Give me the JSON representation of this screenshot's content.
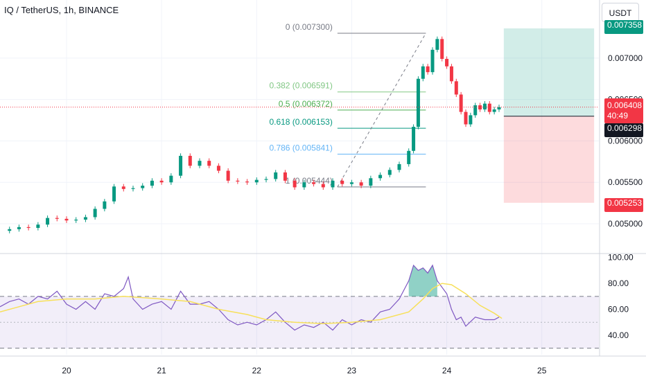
{
  "header": {
    "symbol": "IQ / TetherUS, 1h, BINANCE"
  },
  "toolbar": {
    "currency": "USDT"
  },
  "chart_data": {
    "type": "candlestick",
    "price_axis": {
      "range": [
        0.0049,
        0.00745
      ],
      "ticks": [
        "0.005000",
        "0.005500",
        "0.006000",
        "0.006500",
        "0.007000"
      ]
    },
    "time_axis": {
      "range": [
        19.3,
        25.6
      ],
      "ticks": [
        "20",
        "21",
        "22",
        "23",
        "24",
        "25"
      ]
    },
    "close_series": [
      [
        19.3,
        0.004915
      ],
      [
        19.4,
        0.004935
      ],
      [
        19.5,
        0.00496
      ],
      [
        19.6,
        0.00495
      ],
      [
        19.7,
        0.00499
      ],
      [
        19.8,
        0.00507
      ],
      [
        19.9,
        0.00506
      ],
      [
        20.0,
        0.00504
      ],
      [
        20.1,
        0.00505
      ],
      [
        20.2,
        0.00508
      ],
      [
        20.3,
        0.00518
      ],
      [
        20.4,
        0.00527
      ],
      [
        20.5,
        0.00545
      ],
      [
        20.6,
        0.00542
      ],
      [
        20.7,
        0.00543
      ],
      [
        20.8,
        0.00546
      ],
      [
        20.9,
        0.00552
      ],
      [
        21.0,
        0.0055
      ],
      [
        21.1,
        0.00558
      ],
      [
        21.2,
        0.00582
      ],
      [
        21.3,
        0.0057
      ],
      [
        21.4,
        0.00576
      ],
      [
        21.5,
        0.0057
      ],
      [
        21.6,
        0.00564
      ],
      [
        21.7,
        0.00552
      ],
      [
        21.8,
        0.00551
      ],
      [
        21.9,
        0.0055
      ],
      [
        22.0,
        0.00553
      ],
      [
        22.1,
        0.00554
      ],
      [
        22.2,
        0.00562
      ],
      [
        22.3,
        0.00552
      ],
      [
        22.4,
        0.00544
      ],
      [
        22.5,
        0.0055
      ],
      [
        22.6,
        0.00548
      ],
      [
        22.7,
        0.00544
      ],
      [
        22.8,
        0.00552
      ],
      [
        22.9,
        0.00548
      ],
      [
        23.0,
        0.0055
      ],
      [
        23.1,
        0.00546
      ],
      [
        23.2,
        0.00555
      ],
      [
        23.3,
        0.00559
      ],
      [
        23.4,
        0.00565
      ],
      [
        23.5,
        0.00572
      ],
      [
        23.6,
        0.00588
      ],
      [
        23.65,
        0.00617
      ],
      [
        23.7,
        0.00675
      ],
      [
        23.75,
        0.0069
      ],
      [
        23.8,
        0.00683
      ],
      [
        23.85,
        0.0071
      ],
      [
        23.9,
        0.00723
      ],
      [
        23.95,
        0.00699
      ],
      [
        24.0,
        0.0069
      ],
      [
        24.05,
        0.00672
      ],
      [
        24.1,
        0.00656
      ],
      [
        24.15,
        0.00635
      ],
      [
        24.2,
        0.0062
      ],
      [
        24.25,
        0.00631
      ],
      [
        24.3,
        0.00643
      ],
      [
        24.35,
        0.00638
      ],
      [
        24.4,
        0.00645
      ],
      [
        24.45,
        0.00635
      ],
      [
        24.5,
        0.00638
      ],
      [
        24.55,
        0.006408
      ]
    ],
    "fibonacci": [
      {
        "label": "0 (0.007300)",
        "value": 0.0073,
        "color": "#787b86"
      },
      {
        "label": "0.382 (0.006591)",
        "value": 0.006591,
        "color": "#81c784"
      },
      {
        "label": "0.5 (0.006372)",
        "value": 0.006372,
        "color": "#4caf50"
      },
      {
        "label": "0.618 (0.006153)",
        "value": 0.006153,
        "color": "#089981"
      },
      {
        "label": "0.786 (0.005841)",
        "value": 0.005841,
        "color": "#64b5f6"
      },
      {
        "label": "1 (0.005444)",
        "value": 0.005444,
        "color": "#787b86"
      }
    ],
    "fib_range": {
      "from_day": 22.85,
      "to_day": 23.78,
      "trend_from": [
        22.85,
        0.005444
      ],
      "trend_to": [
        23.78,
        0.0073
      ]
    },
    "position_tool": {
      "from_day": 24.6,
      "to_day": 25.55,
      "target": 0.007358,
      "entry": 0.006298,
      "stop": 0.005253
    },
    "current_price": 0.006408,
    "price_labels": {
      "target": "0.007358",
      "current": "0.006408",
      "countdown": "40:49",
      "entry": "0.006298",
      "stop": "0.005253"
    },
    "rsi": {
      "range": [
        25,
        102
      ],
      "ticks": [
        "40.00",
        "60.00",
        "80.00",
        "100.00"
      ],
      "bands": [
        30,
        50,
        70
      ],
      "series": [
        [
          19.3,
          62
        ],
        [
          19.4,
          66
        ],
        [
          19.5,
          68
        ],
        [
          19.6,
          64
        ],
        [
          19.7,
          70
        ],
        [
          19.8,
          68
        ],
        [
          19.9,
          74
        ],
        [
          20.0,
          64
        ],
        [
          20.1,
          60
        ],
        [
          20.2,
          66
        ],
        [
          20.3,
          60
        ],
        [
          20.4,
          72
        ],
        [
          20.5,
          70
        ],
        [
          20.6,
          76
        ],
        [
          20.65,
          85
        ],
        [
          20.7,
          68
        ],
        [
          20.8,
          60
        ],
        [
          20.9,
          64
        ],
        [
          21.0,
          66
        ],
        [
          21.1,
          60
        ],
        [
          21.2,
          74
        ],
        [
          21.3,
          64
        ],
        [
          21.4,
          64
        ],
        [
          21.5,
          66
        ],
        [
          21.6,
          60
        ],
        [
          21.7,
          52
        ],
        [
          21.8,
          48
        ],
        [
          21.9,
          50
        ],
        [
          22.0,
          48
        ],
        [
          22.1,
          52
        ],
        [
          22.2,
          58
        ],
        [
          22.3,
          50
        ],
        [
          22.4,
          44
        ],
        [
          22.5,
          48
        ],
        [
          22.6,
          46
        ],
        [
          22.7,
          50
        ],
        [
          22.8,
          44
        ],
        [
          22.9,
          52
        ],
        [
          23.0,
          48
        ],
        [
          23.1,
          52
        ],
        [
          23.2,
          50
        ],
        [
          23.3,
          58
        ],
        [
          23.4,
          60
        ],
        [
          23.5,
          68
        ],
        [
          23.6,
          82
        ],
        [
          23.65,
          94
        ],
        [
          23.7,
          90
        ],
        [
          23.75,
          92
        ],
        [
          23.8,
          88
        ],
        [
          23.85,
          94
        ],
        [
          23.9,
          82
        ],
        [
          24.0,
          72
        ],
        [
          24.05,
          60
        ],
        [
          24.1,
          52
        ],
        [
          24.15,
          54
        ],
        [
          24.2,
          47
        ],
        [
          24.3,
          54
        ],
        [
          24.4,
          52
        ],
        [
          24.5,
          52
        ],
        [
          24.55,
          54
        ]
      ],
      "ma": [
        [
          19.3,
          58
        ],
        [
          19.5,
          62
        ],
        [
          19.7,
          66
        ],
        [
          20.0,
          68
        ],
        [
          20.3,
          68
        ],
        [
          20.6,
          70
        ],
        [
          21.0,
          68
        ],
        [
          21.3,
          66
        ],
        [
          21.6,
          60
        ],
        [
          21.9,
          56
        ],
        [
          22.1,
          52
        ],
        [
          22.4,
          50
        ],
        [
          22.7,
          49
        ],
        [
          23.0,
          50
        ],
        [
          23.3,
          52
        ],
        [
          23.6,
          58
        ],
        [
          23.75,
          68
        ],
        [
          23.85,
          76
        ],
        [
          23.95,
          80
        ],
        [
          24.05,
          79
        ],
        [
          24.2,
          72
        ],
        [
          24.35,
          63
        ],
        [
          24.5,
          57
        ],
        [
          24.58,
          53
        ]
      ]
    }
  }
}
